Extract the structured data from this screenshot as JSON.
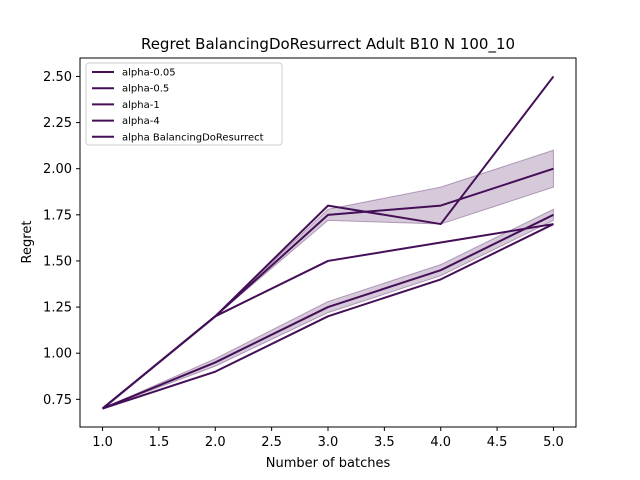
{
  "chart_data": {
    "type": "line",
    "title": "Regret BalancingDoResurrect Adult B10 N 100_10",
    "xlabel": "Number of batches",
    "ylabel": "Regret",
    "xlim": [
      0.8,
      5.2
    ],
    "ylim": [
      0.6,
      2.6
    ],
    "xticks": [
      1.0,
      1.5,
      2.0,
      2.5,
      3.0,
      3.5,
      4.0,
      4.5,
      5.0
    ],
    "xtick_labels": [
      "1.0",
      "1.5",
      "2.0",
      "2.5",
      "3.0",
      "3.5",
      "4.0",
      "4.5",
      "5.0"
    ],
    "yticks": [
      0.75,
      1.0,
      1.25,
      1.5,
      1.75,
      2.0,
      2.25,
      2.5
    ],
    "ytick_labels": [
      "0.75",
      "1.00",
      "1.25",
      "1.50",
      "1.75",
      "2.00",
      "2.25",
      "2.50"
    ],
    "grid": false,
    "legend_position": "top-left",
    "colors": {
      "line": "#440f57",
      "band": "#440f57"
    },
    "x": [
      1,
      2,
      3,
      4,
      5
    ],
    "series": [
      {
        "name": "alpha-0.05",
        "values": [
          0.7,
          0.9,
          1.2,
          1.4,
          1.7
        ]
      },
      {
        "name": "alpha-0.5",
        "values": [
          0.7,
          1.2,
          1.5,
          1.6,
          1.7
        ]
      },
      {
        "name": "alpha-1",
        "values": [
          0.7,
          1.2,
          1.8,
          1.7,
          2.5
        ]
      },
      {
        "name": "alpha-4",
        "values": [
          0.7,
          0.95,
          1.25,
          1.45,
          1.75
        ],
        "band_lower": [
          0.7,
          0.93,
          1.22,
          1.42,
          1.72
        ],
        "band_upper": [
          0.7,
          0.97,
          1.28,
          1.48,
          1.78
        ]
      },
      {
        "name": "alpha BalancingDoResurrect",
        "values": [
          0.7,
          1.2,
          1.75,
          1.8,
          2.0
        ],
        "band_lower": [
          0.7,
          1.2,
          1.72,
          1.7,
          1.9
        ],
        "band_upper": [
          0.7,
          1.2,
          1.78,
          1.9,
          2.1
        ]
      }
    ]
  }
}
